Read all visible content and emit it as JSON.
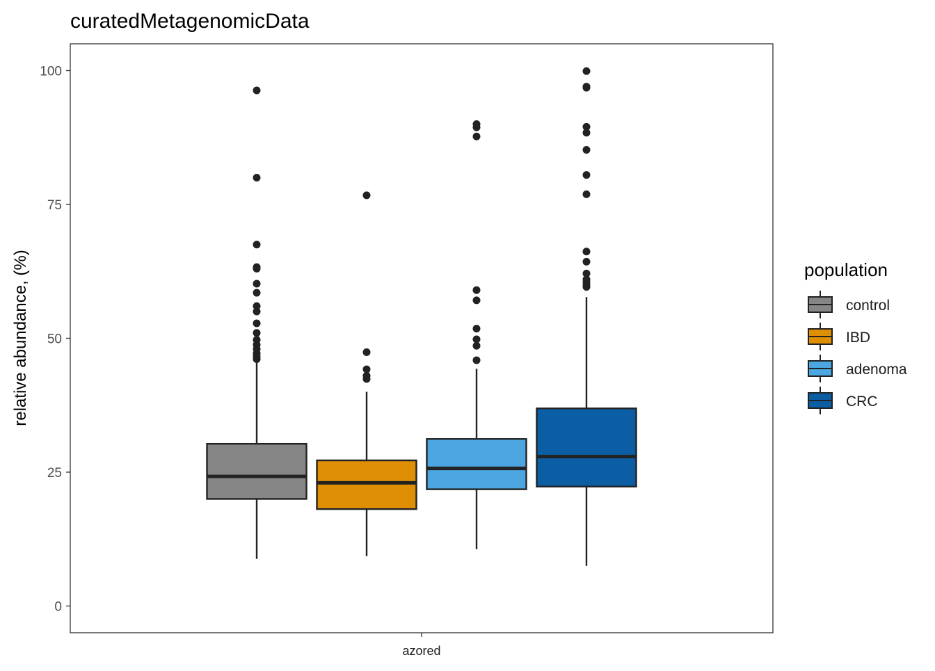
{
  "chart_data": {
    "type": "boxplot",
    "title": "curatedMetagenomicData",
    "xlabel": "",
    "ylabel": "relative abundance, (%)",
    "categories": [
      "azored"
    ],
    "ylim": [
      -5,
      105
    ],
    "yticks": [
      0,
      25,
      50,
      75,
      100
    ],
    "grid": false,
    "legend": {
      "title": "population",
      "position": "right"
    },
    "series": [
      {
        "name": "control",
        "color": "#868686",
        "stats": {
          "whisker_low": 8.8,
          "q1": 20.0,
          "median": 24.2,
          "q3": 30.3,
          "whisker_high": 45.9
        },
        "outliers": [
          96.3,
          80.0,
          67.5,
          63.3,
          63.0,
          60.2,
          58.5,
          56.0,
          55.0,
          52.8,
          51.0,
          49.7,
          48.8,
          48.0,
          47.2,
          46.6,
          46.1
        ]
      },
      {
        "name": "IBD",
        "color": "#df8f04",
        "stats": {
          "whisker_low": 9.3,
          "q1": 18.1,
          "median": 23.0,
          "q3": 27.2,
          "whisker_high": 40.0
        },
        "outliers": [
          76.7,
          47.4,
          44.2,
          43.0,
          42.4
        ]
      },
      {
        "name": "adenoma",
        "color": "#4ba6e1",
        "stats": {
          "whisker_low": 10.6,
          "q1": 21.8,
          "median": 25.7,
          "q3": 31.2,
          "whisker_high": 44.3
        },
        "outliers": [
          90.0,
          89.4,
          87.7,
          59.0,
          57.1,
          51.8,
          49.8,
          48.6,
          45.9
        ]
      },
      {
        "name": "CRC",
        "color": "#0b5ea3",
        "stats": {
          "whisker_low": 7.5,
          "q1": 22.3,
          "median": 27.9,
          "q3": 36.9,
          "whisker_high": 57.7
        },
        "outliers": [
          99.9,
          97.0,
          96.8,
          89.5,
          88.4,
          85.2,
          80.5,
          76.9,
          66.2,
          64.3,
          62.1,
          61.0,
          60.5,
          60.0,
          59.6
        ]
      }
    ]
  }
}
